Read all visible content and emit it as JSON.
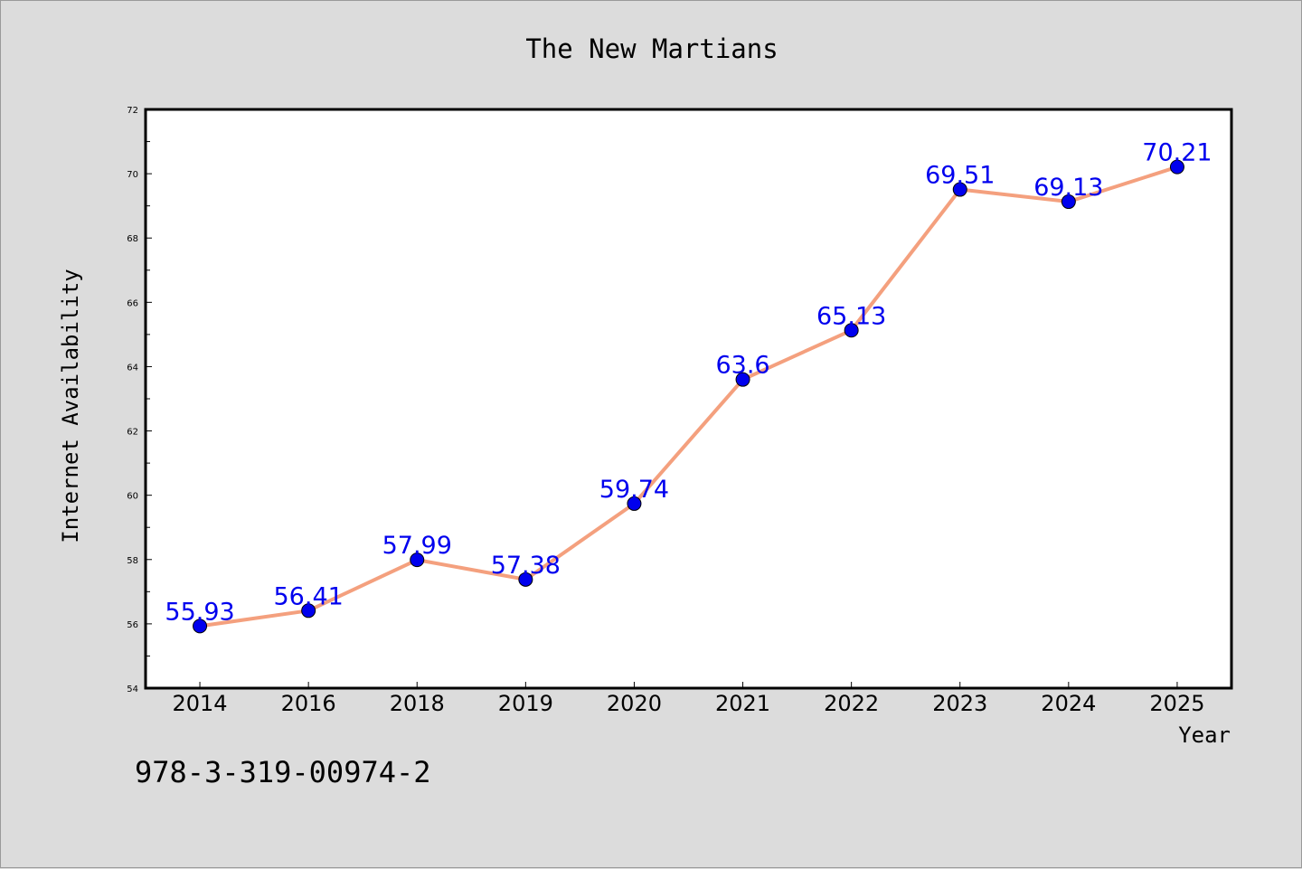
{
  "chart_data": {
    "type": "line",
    "title": "The New Martians",
    "xlabel": "Year",
    "ylabel": "Internet Availability",
    "categories": [
      "2014",
      "2016",
      "2018",
      "2019",
      "2020",
      "2021",
      "2022",
      "2023",
      "2024",
      "2025"
    ],
    "series": [
      {
        "values": [
          55.93,
          56.41,
          57.99,
          57.38,
          59.74,
          63.6,
          65.13,
          69.51,
          69.13,
          70.21
        ],
        "labels": [
          "55.93",
          "56.41",
          "57.99",
          "57.38",
          "59.74",
          "63.6",
          "65.13",
          "69.51",
          "69.13",
          "70.21"
        ]
      }
    ],
    "ylim": [
      54,
      72
    ],
    "yticks": [
      "54",
      "56",
      "58",
      "60",
      "62",
      "64",
      "66",
      "68",
      "70",
      "72"
    ],
    "grid": false,
    "line_color": "#f4a07e",
    "marker_color": "#0000ee",
    "label_color": "#0000ee",
    "annotation": "978-3-319-00974-2"
  }
}
